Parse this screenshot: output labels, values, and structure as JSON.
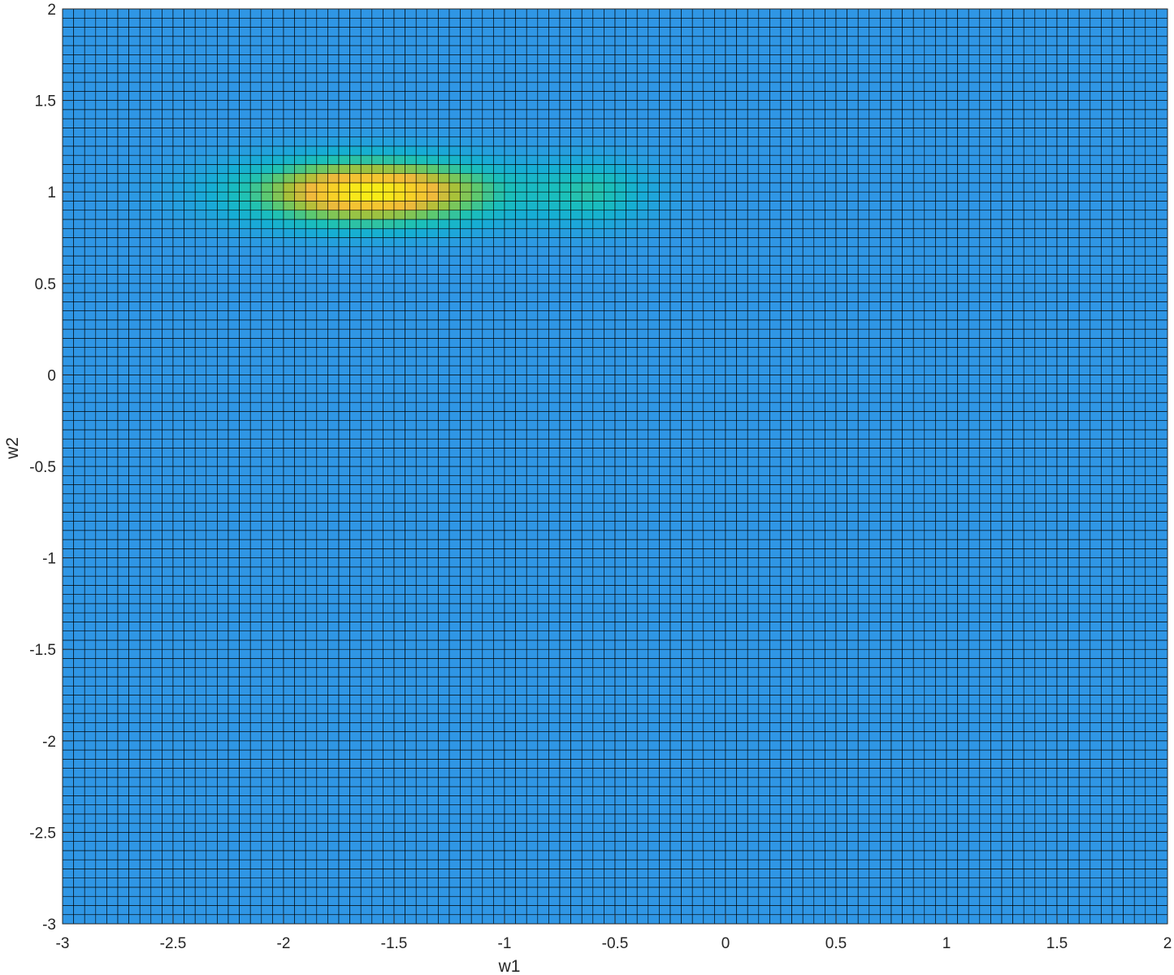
{
  "chart_data": {
    "type": "heatmap",
    "title": "",
    "xlabel": "w1",
    "ylabel": "w2",
    "xlim": [
      -3,
      2
    ],
    "ylim": [
      -3,
      2
    ],
    "x_ticks": [
      "-3",
      "-2.5",
      "-2",
      "-1.5",
      "-1",
      "-0.5",
      "0",
      "0.5",
      "1",
      "1.5",
      "2"
    ],
    "y_ticks": [
      "-3",
      "-2.5",
      "-2",
      "-1.5",
      "-1",
      "-0.5",
      "0",
      "0.5",
      "1",
      "1.5",
      "2"
    ],
    "x_tick_values": [
      -3,
      -2.5,
      -2,
      -1.5,
      -1,
      -0.5,
      0,
      0.5,
      1,
      1.5,
      2
    ],
    "y_tick_values": [
      -3,
      -2.5,
      -2,
      -1.5,
      -1,
      -0.5,
      0,
      0.5,
      1,
      1.5,
      2
    ],
    "grid_step": 0.05,
    "colormap": "parula",
    "colorbar": false,
    "background_color": "#2F96E5",
    "peaks": [
      {
        "w1": -1.6,
        "w2": 1.0,
        "sigma_w1": 0.38,
        "sigma_w2": 0.12,
        "amplitude": 1.0
      },
      {
        "w1": -0.6,
        "w2": 1.0,
        "sigma_w1": 0.18,
        "sigma_w2": 0.12,
        "amplitude": 0.3
      }
    ],
    "color_stops": [
      {
        "t": 0.0,
        "color": "#2F96E5"
      },
      {
        "t": 0.15,
        "color": "#16ADD5"
      },
      {
        "t": 0.3,
        "color": "#1BC0B8"
      },
      {
        "t": 0.45,
        "color": "#5DC970"
      },
      {
        "t": 0.6,
        "color": "#A7C13A"
      },
      {
        "t": 0.75,
        "color": "#F0B93C"
      },
      {
        "t": 0.88,
        "color": "#F8D028"
      },
      {
        "t": 1.0,
        "color": "#F8F214"
      }
    ],
    "cell_edge_color": "#000000"
  }
}
